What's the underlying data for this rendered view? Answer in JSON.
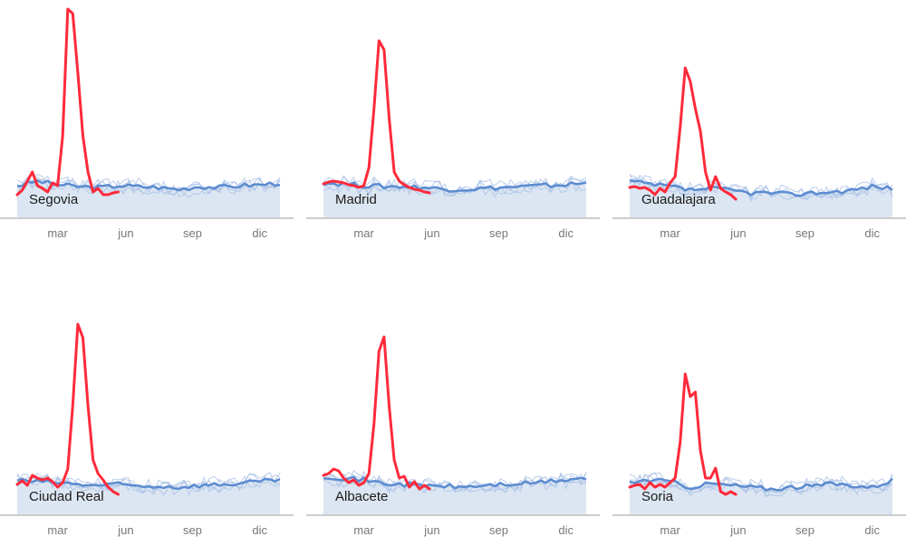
{
  "chart_data": {
    "type": "line",
    "title": "",
    "xlabel": "",
    "ylabel": "",
    "ylim": [
      0,
      240
    ],
    "x_unit": "week of year",
    "xlim": [
      0,
      52
    ],
    "x_ticks": [
      {
        "label": "mar",
        "week": 8
      },
      {
        "label": "jun",
        "week": 21.5
      },
      {
        "label": "sep",
        "week": 34.7
      },
      {
        "label": "dic",
        "week": 48
      }
    ],
    "colors": {
      "current": "#ff2a3a",
      "mean": "#5b8bd0",
      "history": "#a9c0e6",
      "fill": "#dce6f2",
      "axis": "#999999"
    },
    "panels": [
      {
        "name": "Segovia",
        "baseline_every_4_weeks": [
          35,
          40,
          36,
          34,
          33,
          35,
          34,
          33,
          31,
          34,
          33,
          35,
          36,
          38
        ],
        "current": [
          25,
          30,
          40,
          50,
          35,
          32,
          28,
          38,
          35,
          90,
          230,
          225,
          160,
          90,
          50,
          28,
          32,
          25,
          25,
          27,
          28
        ]
      },
      {
        "name": "Madrid",
        "baseline_every_4_weeks": [
          38,
          37,
          35,
          34,
          34,
          33,
          31,
          31,
          32,
          33,
          34,
          35,
          36,
          38
        ],
        "current": [
          37,
          39,
          40,
          39,
          38,
          36,
          35,
          33,
          35,
          55,
          120,
          195,
          185,
          110,
          50,
          40,
          36,
          33,
          31,
          30,
          28,
          27
        ]
      },
      {
        "name": "Guadalajara",
        "baseline_every_4_weeks": [
          40,
          36,
          34,
          30,
          32,
          30,
          27,
          27,
          25,
          27,
          28,
          30,
          34,
          32
        ],
        "current": [
          33,
          34,
          32,
          33,
          30,
          25,
          32,
          28,
          38,
          45,
          100,
          165,
          150,
          120,
          95,
          50,
          30,
          45,
          32,
          28,
          25,
          20
        ]
      },
      {
        "name": "Ciudad Real",
        "baseline_every_4_weeks": [
          38,
          36,
          35,
          33,
          32,
          33,
          31,
          31,
          30,
          32,
          33,
          34,
          36,
          38
        ],
        "current": [
          33,
          37,
          32,
          43,
          40,
          38,
          40,
          36,
          30,
          35,
          50,
          120,
          210,
          195,
          120,
          60,
          45,
          38,
          30,
          25,
          22
        ]
      },
      {
        "name": "Albacete",
        "baseline_every_4_weeks": [
          42,
          40,
          38,
          34,
          33,
          32,
          31,
          30,
          32,
          33,
          34,
          36,
          38,
          40
        ],
        "current": [
          43,
          45,
          50,
          48,
          40,
          35,
          38,
          32,
          35,
          45,
          100,
          180,
          196,
          120,
          60,
          40,
          42,
          30,
          36,
          28,
          32,
          28
        ]
      },
      {
        "name": "Soria",
        "baseline_every_4_weeks": [
          35,
          38,
          36,
          30,
          34,
          32,
          30,
          28,
          30,
          31,
          34,
          32,
          30,
          38
        ],
        "current": [
          30,
          32,
          33,
          28,
          35,
          30,
          33,
          30,
          35,
          40,
          80,
          155,
          130,
          135,
          70,
          40,
          40,
          51,
          25,
          22,
          25,
          22
        ]
      }
    ]
  }
}
